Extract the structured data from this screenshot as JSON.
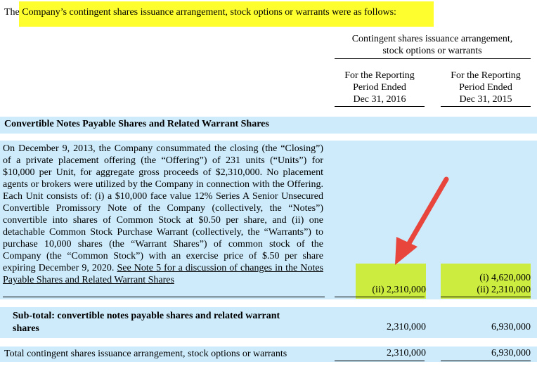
{
  "intro": "The Company’s contingent shares issuance arrangement, stock options or warrants were as follows:",
  "columns": {
    "group_header": [
      "Contingent shares issuance arrangement,",
      "stock options or warrants"
    ],
    "col1": [
      "For the Reporting",
      "Period Ended",
      "Dec 31, 2016"
    ],
    "col2": [
      "For the Reporting",
      "Period Ended",
      "Dec 31, 2015"
    ]
  },
  "section": {
    "title": "Convertible Notes Payable Shares and Related Warrant Shares",
    "paragraph": "On December 9, 2013, the Company consummated the closing (the “Closing”) of a private placement offering (the “Offering”) of 231 units (“Units”) for $10,000 per Unit, for aggregate gross proceeds of $2,310,000. No placement agents or brokers were utilized by the Company in connection with the Offering. Each Unit consists of: (i) a $10,000 face value 12% Series A Senior Unsecured Convertible Promissory Note of the Company (collectively, the “Notes”) convertible into shares of Common Stock at $0.50 per share, and (ii) one detachable Common Stock Purchase Warrant (collectively, the “Warrants”) to purchase 10,000 shares (the “Warrant Shares”) of common stock of the Company (the “Common Stock”) with an exercise price of $.50 per share expiring December 9, 2020. ",
    "link_text": "See Note 5 for a discussion of changes in the Notes Payable Shares and Related Warrant Shares",
    "col1_values": [
      "(ii) 2,310,000"
    ],
    "col2_values": [
      "(i) 4,620,000",
      "(ii) 2,310,000"
    ]
  },
  "subtotal": {
    "label_line1": "Sub-total: convertible notes payable shares and related warrant",
    "label_line2": "shares",
    "col1": "2,310,000",
    "col2": "6,930,000"
  },
  "total": {
    "label": "Total contingent shares issuance arrangement, stock options or warrants",
    "col1": "2,310,000",
    "col2": "6,930,000"
  },
  "colors": {
    "highlight_yellow": "#fefe2f",
    "row_blue": "#cdebfb",
    "cell_green": "#ccec40",
    "arrow_red": "#e8453c"
  }
}
